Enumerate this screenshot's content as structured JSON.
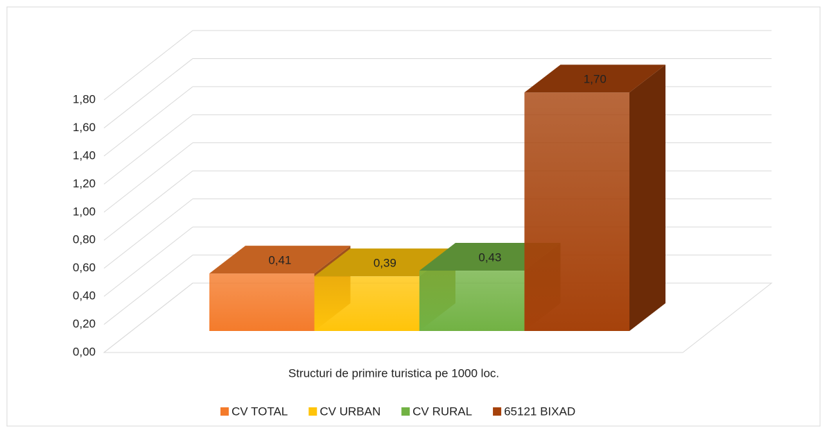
{
  "chart_data": {
    "type": "bar3d",
    "categories": [
      "Structuri de primire turistica pe 1000 loc."
    ],
    "series": [
      {
        "name": "CV TOTAL",
        "color": "#f47b2b",
        "values": [
          0.41
        ],
        "value_labels": [
          "0,41"
        ]
      },
      {
        "name": "CV URBAN",
        "color": "#ffc40a",
        "values": [
          0.39
        ],
        "value_labels": [
          "0,39"
        ]
      },
      {
        "name": "CV RURAL",
        "color": "#72b244",
        "values": [
          0.43
        ],
        "value_labels": [
          "0,43"
        ]
      },
      {
        "name": "65121 BIXAD",
        "color": "#a6420b",
        "values": [
          1.7
        ],
        "value_labels": [
          "1,70"
        ]
      }
    ],
    "ylim": [
      0,
      1.8
    ],
    "yticks": [
      {
        "value": 0,
        "label": "0,00"
      },
      {
        "value": 0.2,
        "label": "0,20"
      },
      {
        "value": 0.4,
        "label": "0,40"
      },
      {
        "value": 0.6,
        "label": "0,60"
      },
      {
        "value": 0.8,
        "label": "0,80"
      },
      {
        "value": 1.0,
        "label": "1,00"
      },
      {
        "value": 1.2,
        "label": "1,20"
      },
      {
        "value": 1.4,
        "label": "1,40"
      },
      {
        "value": 1.6,
        "label": "1,60"
      },
      {
        "value": 1.8,
        "label": "1,80"
      }
    ],
    "grid": true,
    "legend": "bottom"
  }
}
